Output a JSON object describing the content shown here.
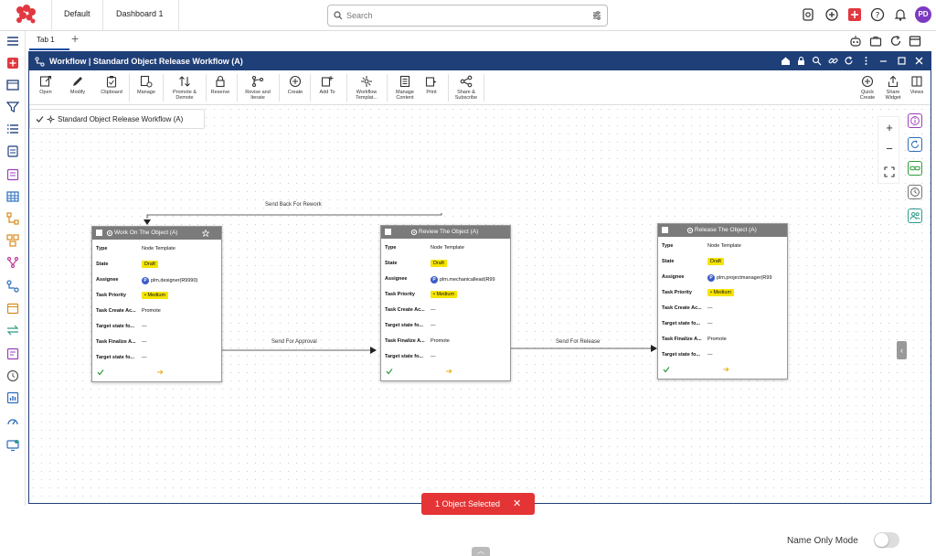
{
  "topbar": {
    "tabs": [
      "Default",
      "Dashboard 1"
    ],
    "search_placeholder": "Search",
    "avatar_initials": "PD"
  },
  "tabs": {
    "tab1": "Tab 1",
    "add": "+"
  },
  "panel": {
    "title": "Workflow | Standard Object Release Workflow (A)"
  },
  "toolbar": [
    {
      "label": "Open"
    },
    {
      "label": "Modify"
    },
    {
      "label": "Clipboard"
    },
    {
      "label": "Manage"
    },
    {
      "label": "Promote &\nDemote"
    },
    {
      "label": "Reserve"
    },
    {
      "label": "Revise and\nIterate"
    },
    {
      "label": "Create"
    },
    {
      "label": "Add To"
    },
    {
      "label": "Workflow\nTemplat..."
    },
    {
      "label": "Manage\nContent"
    },
    {
      "label": "Print"
    },
    {
      "label": "Share &\nSubscribe"
    }
  ],
  "toolbar_right": [
    {
      "label": "Quick\nCreate"
    },
    {
      "label": "Share\nWidget"
    },
    {
      "label": "Views"
    }
  ],
  "breadcrumb": {
    "title": "Standard Object Release Workflow (A)"
  },
  "zoom": {
    "in": "+",
    "out": "−"
  },
  "nodes": [
    {
      "title": "Work On The Object (A)",
      "type": "Node Template",
      "state": "Draft",
      "assignee": "plm.designer(R9990)",
      "priority": "Medium",
      "create_action": "Promote",
      "target_create": "—",
      "finalize_action": "—",
      "target_finalize": "—"
    },
    {
      "title": "Review The Object (A)",
      "type": "Node Template",
      "state": "Draft",
      "assignee": "plm.mechanicallead(R99",
      "priority": "Medium",
      "create_action": "—",
      "target_create": "—",
      "finalize_action": "Promote",
      "target_finalize": "—"
    },
    {
      "title": "Release The Object (A)",
      "type": "Node Template",
      "state": "Draft",
      "assignee": "plm.projectmanager(R99",
      "priority": "Medium",
      "create_action": "—",
      "target_create": "—",
      "finalize_action": "Promote",
      "target_finalize": "—"
    }
  ],
  "row_labels": {
    "type": "Type",
    "state": "State",
    "assignee": "Assignee",
    "priority": "Task Priority",
    "create_action": "Task Create Ac...",
    "target_create": "Target state fo...",
    "finalize_action": "Task Finalize A...",
    "target_finalize": "Target state fo..."
  },
  "edges": {
    "rework": "Send Back For Rework",
    "approval": "Send For Approval",
    "release": "Send For Release"
  },
  "selection_toast": {
    "text": "1 Object Selected",
    "close": "✕"
  },
  "name_only_mode": {
    "label": "Name Only Mode",
    "enabled": false
  },
  "colors": {
    "accent": "#1f3f78",
    "toast": "#e53435",
    "badge": "#f5e400"
  }
}
